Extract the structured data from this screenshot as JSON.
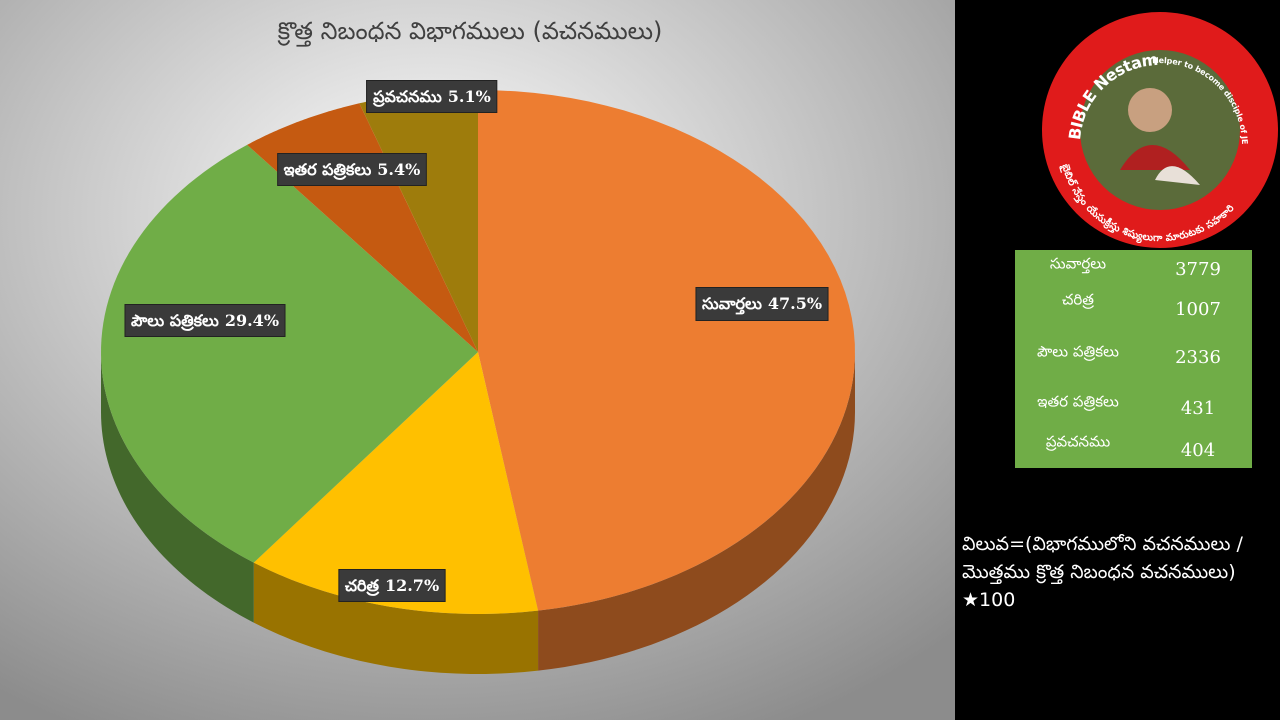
{
  "chart_data": {
    "type": "pie",
    "title": "క్రొత్త నిబంధన విభాగములు (వచనములు)",
    "categories": [
      "సువార్తలు",
      "చరిత్ర",
      "పౌలు పత్రికలు",
      "ఇతర పత్రికలు",
      "ప్రవచనము"
    ],
    "values": [
      47.5,
      12.7,
      29.4,
      5.4,
      5.1
    ],
    "value_labels": [
      "47.5%",
      "12.7%",
      "29.4%",
      "5.4%",
      "5.1%"
    ],
    "colors": [
      "#ED7D31",
      "#FFC000",
      "#70AD47",
      "#C55A11",
      "#9E7C0C"
    ]
  },
  "table": {
    "rows": [
      [
        "సువార్తలు",
        3779
      ],
      [
        "చరిత్ర",
        1007
      ],
      [
        "పౌలు పత్రికలు",
        2336
      ],
      [
        "ఇతర పత్రికలు",
        431
      ],
      [
        "ప్రవచనము",
        404
      ]
    ]
  },
  "formula": "విలువ=(విభాగములోని వచనములు / మొత్తము క్రొత్త నిబంధన వచనములు) ★100",
  "logo": {
    "name": "BIBLE Nestam",
    "tagline": "Helper to become disciple of JESUS CHRIST",
    "telugu": "బైబిల్ నేస్తం యేసుక్రీస్తు శిష్యులుగా మారుటకు సహకారి"
  }
}
